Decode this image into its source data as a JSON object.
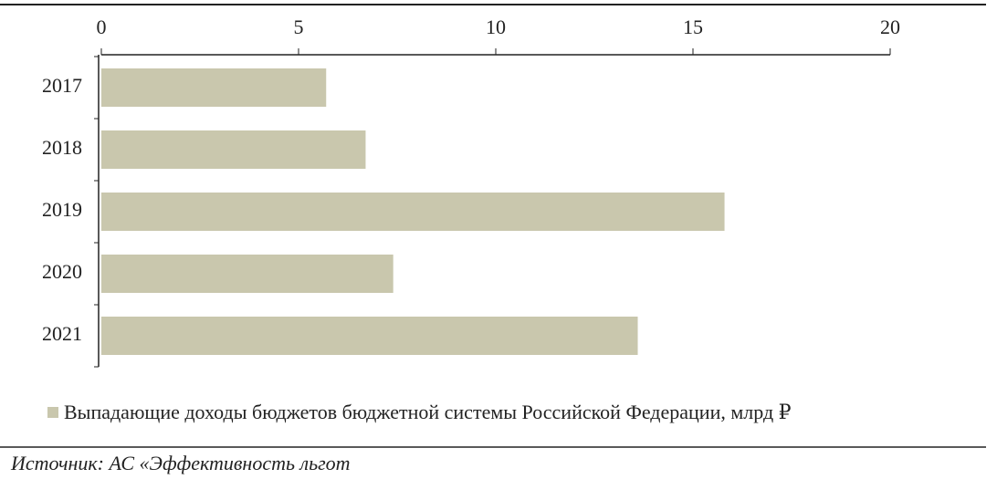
{
  "chart_data": {
    "type": "barh",
    "categories": [
      "2017",
      "2018",
      "2019",
      "2020",
      "2021"
    ],
    "series": [
      {
        "name": "Выпадающие доходы бюджетов бюджетной системы Российской Федерации, млрд ₽",
        "color": "#c9c7ad",
        "values": [
          5.7,
          6.7,
          15.8,
          7.4,
          13.6
        ]
      }
    ],
    "xlim": [
      0,
      20
    ],
    "xticks": [
      0,
      5,
      10,
      15,
      20
    ],
    "legend": "bottom",
    "source": "Источник: АС «Эффективность льгот"
  }
}
